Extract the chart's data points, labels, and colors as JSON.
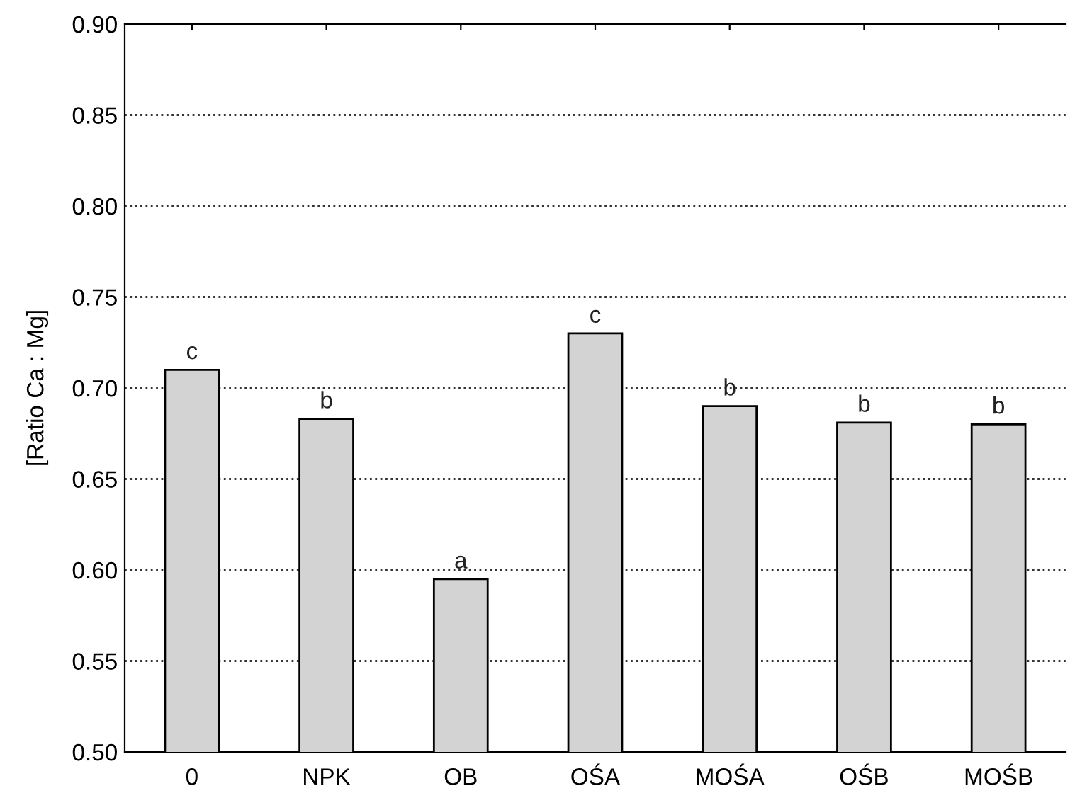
{
  "chart_data": {
    "type": "bar",
    "ylabel": "[Ratio Ca : Mg]",
    "categories": [
      "0",
      "NPK",
      "OB",
      "OŚA",
      "MOŚA",
      "OŚB",
      "MOŚB"
    ],
    "values": [
      0.71,
      0.683,
      0.595,
      0.73,
      0.69,
      0.681,
      0.68
    ],
    "value_labels": [
      "c",
      "b",
      "a",
      "c",
      "b",
      "b",
      "b"
    ],
    "color": "#d3d3d3",
    "ylim": [
      0.5,
      0.9
    ],
    "yticks": [
      {
        "value": 0.5,
        "label": "0.50"
      },
      {
        "value": 0.55,
        "label": "0.55"
      },
      {
        "value": 0.6,
        "label": "0.60"
      },
      {
        "value": 0.65,
        "label": "0.65"
      },
      {
        "value": 0.7,
        "label": "0.70"
      },
      {
        "value": 0.75,
        "label": "0.75"
      },
      {
        "value": 0.8,
        "label": "0.80"
      },
      {
        "value": 0.85,
        "label": "0.85"
      },
      {
        "value": 0.9,
        "label": "0.90"
      }
    ],
    "grid": "y",
    "line_style": "dotted"
  }
}
